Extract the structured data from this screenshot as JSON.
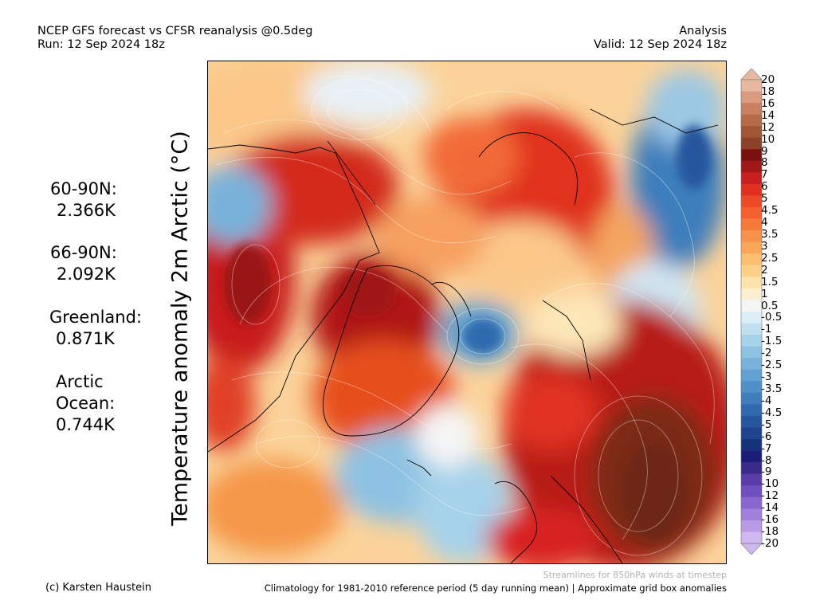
{
  "header": {
    "title_line1": "NCEP GFS forecast vs CFSR reanalysis @0.5deg",
    "title_line2": "Run: 12 Sep 2024 18z",
    "right_line1": "Analysis",
    "right_line2": "Valid: 12 Sep 2024 18z"
  },
  "y_label": "Temperature anomaly 2m Arctic (°C)",
  "stats": {
    "n60_label": "60-90N:",
    "n60_value": "2.366K",
    "n66_label": "66-90N:",
    "n66_value": "2.092K",
    "greenland_label": "Greenland:",
    "greenland_value": "0.871K",
    "arctic_label1": "Arctic",
    "arctic_label2": "Ocean:",
    "arctic_value": "0.744K"
  },
  "colorbar": {
    "labels": [
      "20",
      "18",
      "16",
      "14",
      "12",
      "10",
      "9",
      "8",
      "7",
      "6",
      "5",
      "4.5",
      "4",
      "3.5",
      "3",
      "2.5",
      "2",
      "1.5",
      "1",
      "0.5",
      "-0.5",
      "-1",
      "-1.5",
      "-2",
      "-2.5",
      "-3",
      "-3.5",
      "-4",
      "-4.5",
      "-5",
      "-6",
      "-7",
      "-8",
      "-9",
      "-10",
      "-12",
      "-14",
      "-16",
      "-18",
      "-20"
    ],
    "colors": [
      "#e8b8a0",
      "#d99a80",
      "#c98060",
      "#b56a48",
      "#a05535",
      "#8c4228",
      "#7a1010",
      "#a01818",
      "#c82020",
      "#e03020",
      "#ef4a28",
      "#f56030",
      "#f77a3a",
      "#f8924a",
      "#f9a85a",
      "#fbbe70",
      "#fdd08a",
      "#fde3ac",
      "#fdf0d0",
      "#f5f5f5",
      "#dceef8",
      "#c0e0f0",
      "#a6d2ea",
      "#8ec2e2",
      "#78b2da",
      "#62a2d2",
      "#4f90c8",
      "#3e7ebc",
      "#2f6aae",
      "#25569e",
      "#1d448c",
      "#16327a",
      "#1c1c7a",
      "#3a2a8c",
      "#5a3ca8",
      "#7050c0",
      "#8868d0",
      "#a080dc",
      "#b89ae6",
      "#d0b8f0"
    ]
  },
  "footer": {
    "credit": "(c) Karsten Haustein",
    "note": "Streamlines for 850hPa winds at timestep",
    "climatology": "Climatology for 1981-2010 reference period (5 day running mean) | Approximate grid box anomalies"
  }
}
